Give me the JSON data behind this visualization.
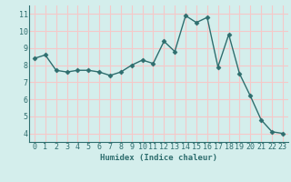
{
  "x": [
    0,
    1,
    2,
    3,
    4,
    5,
    6,
    7,
    8,
    9,
    10,
    11,
    12,
    13,
    14,
    15,
    16,
    17,
    18,
    19,
    20,
    21,
    22,
    23
  ],
  "y": [
    8.4,
    8.6,
    7.7,
    7.6,
    7.7,
    7.7,
    7.6,
    7.4,
    7.6,
    8.0,
    8.3,
    8.1,
    9.4,
    8.8,
    10.9,
    10.5,
    10.8,
    7.9,
    9.8,
    7.5,
    6.2,
    4.8,
    4.1,
    4.0
  ],
  "xlabel": "Humidex (Indice chaleur)",
  "xlim": [
    -0.5,
    23.5
  ],
  "ylim": [
    3.5,
    11.5
  ],
  "yticks": [
    4,
    5,
    6,
    7,
    8,
    9,
    10,
    11
  ],
  "xticks": [
    0,
    1,
    2,
    3,
    4,
    5,
    6,
    7,
    8,
    9,
    10,
    11,
    12,
    13,
    14,
    15,
    16,
    17,
    18,
    19,
    20,
    21,
    22,
    23
  ],
  "line_color": "#2e6e6e",
  "marker": "D",
  "marker_size": 2.5,
  "bg_color": "#d4eeec",
  "grid_color": "#f5c8c8",
  "axis_label_fontsize": 6.5,
  "tick_fontsize": 6.0,
  "linewidth": 1.0
}
